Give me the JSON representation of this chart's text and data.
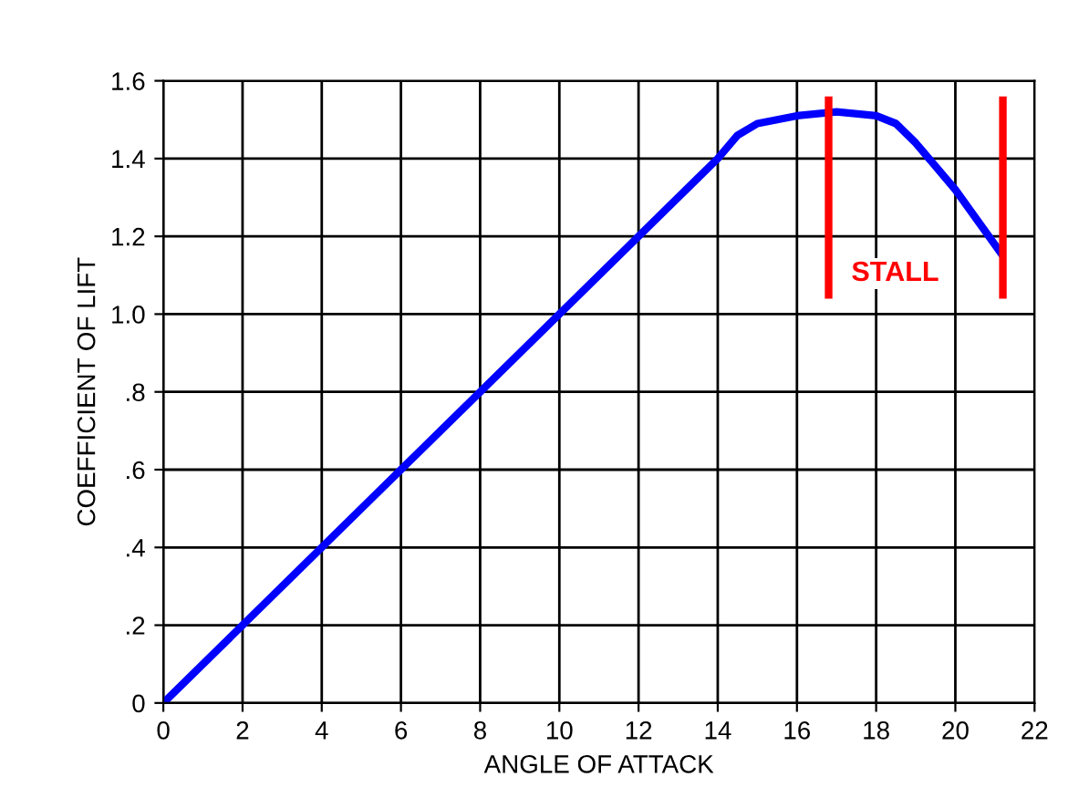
{
  "chart_data": {
    "type": "line",
    "xlabel": "ANGLE OF ATTACK",
    "ylabel": "COEFFICIENT OF LIFT",
    "xlim": [
      0,
      22
    ],
    "xticks": [
      0,
      2,
      4,
      6,
      8,
      10,
      12,
      14,
      16,
      18,
      20,
      22
    ],
    "ylim": [
      0,
      1.6
    ],
    "yticks": [
      0,
      {
        "value": 0.2,
        "label": ".2"
      },
      {
        "value": 0.4,
        "label": ".4"
      },
      {
        "value": 0.6,
        "label": ".6"
      },
      {
        "value": 0.8,
        "label": ".8"
      },
      {
        "value": 1.0,
        "label": "1.0"
      },
      {
        "value": 1.2,
        "label": "1.2"
      },
      {
        "value": 1.4,
        "label": "1.4"
      },
      {
        "value": 1.6,
        "label": "1.6"
      }
    ],
    "grid": true,
    "legend": false,
    "marker": "none",
    "line_style": "solid",
    "series": [
      {
        "color": "#0000ff",
        "x": [
          0,
          14,
          14.5,
          15,
          16,
          17,
          18,
          18.5,
          19,
          20,
          21.2
        ],
        "values": [
          0,
          1.4,
          1.46,
          1.49,
          1.51,
          1.52,
          1.51,
          1.49,
          1.44,
          1.32,
          1.15
        ]
      },
      {
        "color": "#ff0000",
        "x": [
          16.8,
          16.8
        ],
        "values": [
          1.04,
          1.56
        ]
      },
      {
        "color": "#ff0000",
        "x": [
          21.2,
          21.2
        ],
        "values": [
          1.04,
          1.56
        ]
      }
    ],
    "annotations": [
      "STALL"
    ]
  }
}
